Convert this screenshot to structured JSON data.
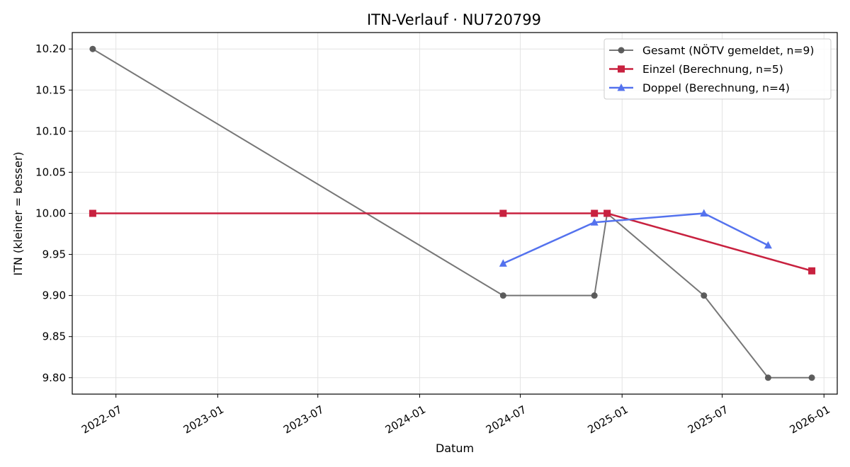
{
  "chart_data": {
    "type": "line",
    "title": "ITN-Verlauf · NU720799",
    "xlabel": "Datum",
    "ylabel": "ITN  (kleiner = besser)",
    "x_axis_type": "date",
    "xlim": [
      "2022-04-13",
      "2026-01-25"
    ],
    "ylim": [
      9.78,
      10.22
    ],
    "x_ticks": [
      "2022-07-01",
      "2023-01-01",
      "2023-07-01",
      "2024-01-01",
      "2024-07-01",
      "2025-01-01",
      "2025-07-01",
      "2026-01-01"
    ],
    "x_tick_labels": [
      "2022-07",
      "2023-01",
      "2023-07",
      "2024-01",
      "2024-07",
      "2025-01",
      "2025-07",
      "2026-01"
    ],
    "y_ticks": [
      9.8,
      9.85,
      9.9,
      9.95,
      10.0,
      10.05,
      10.1,
      10.15,
      10.2
    ],
    "y_tick_labels": [
      "9.80",
      "9.85",
      "9.90",
      "9.95",
      "10.00",
      "10.05",
      "10.10",
      "10.15",
      "10.20"
    ],
    "grid": true,
    "legend_position": "top-right",
    "series": [
      {
        "name": "Gesamt (NÖTV gemeldet, n=9)",
        "color": "#555555",
        "marker": "circle",
        "points": [
          {
            "x": "2022-05-20",
            "y": 10.2
          },
          {
            "x": "2024-05-31",
            "y": 9.9
          },
          {
            "x": "2024-11-12",
            "y": 9.9
          },
          {
            "x": "2024-12-05",
            "y": 10.0
          },
          {
            "x": "2025-05-29",
            "y": 9.9
          },
          {
            "x": "2025-09-22",
            "y": 9.8
          },
          {
            "x": "2025-12-10",
            "y": 9.8
          }
        ]
      },
      {
        "name": "Einzel (Berechnung, n=5)",
        "color": "#c8213f",
        "marker": "square",
        "points": [
          {
            "x": "2022-05-20",
            "y": 10.0
          },
          {
            "x": "2024-05-31",
            "y": 10.0
          },
          {
            "x": "2024-11-12",
            "y": 10.0
          },
          {
            "x": "2024-12-05",
            "y": 10.0
          },
          {
            "x": "2025-12-10",
            "y": 9.93
          }
        ]
      },
      {
        "name": "Doppel (Berechnung, n=4)",
        "color": "#5472ee",
        "marker": "triangle",
        "points": [
          {
            "x": "2024-05-31",
            "y": 9.939
          },
          {
            "x": "2024-11-12",
            "y": 9.989
          },
          {
            "x": "2025-05-29",
            "y": 10.0
          },
          {
            "x": "2025-09-22",
            "y": 9.961
          }
        ]
      }
    ]
  }
}
